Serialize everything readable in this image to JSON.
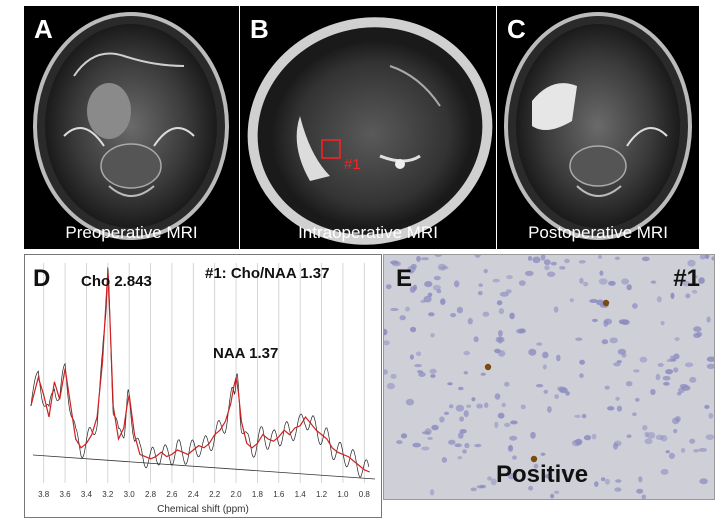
{
  "panels": {
    "a": {
      "letter": "A",
      "caption": "Preoperative MRI"
    },
    "b": {
      "letter": "B",
      "caption": "Intraoperative MRI",
      "roi_label": "#1",
      "roi_color": "#ff2020"
    },
    "c": {
      "letter": "C",
      "caption": "Postoperative MRI"
    },
    "d": {
      "letter": "D",
      "annotation_left": "Cho 2.843",
      "annotation_right": "#1: Cho/NAA 1.37",
      "annotation_naa": "NAA 1.37"
    },
    "e": {
      "letter": "E",
      "region_label": "#1",
      "stain_result": "Positive"
    }
  },
  "chart_data": {
    "type": "line",
    "xlabel": "Chemical shift (ppm)",
    "ylabel": "",
    "x_reversed": true,
    "xlim": [
      3.9,
      0.7
    ],
    "ticks": [
      "3.8",
      "3.6",
      "3.4",
      "3.2",
      "3.0",
      "2.8",
      "2.6",
      "2.4",
      "2.2",
      "2.0",
      "1.8",
      "1.6",
      "1.4",
      "1.2",
      "1.0",
      "0.8"
    ],
    "ylim": [
      0,
      1
    ],
    "grid": true,
    "series": [
      {
        "color": "#d02020",
        "x": [
          3.92,
          3.85,
          3.8,
          3.75,
          3.7,
          3.65,
          3.6,
          3.55,
          3.5,
          3.45,
          3.4,
          3.35,
          3.3,
          3.25,
          3.22,
          3.2,
          3.18,
          3.15,
          3.1,
          3.05,
          3.02,
          3.0,
          2.95,
          2.9,
          2.85,
          2.8,
          2.75,
          2.7,
          2.65,
          2.6,
          2.55,
          2.5,
          2.45,
          2.4,
          2.35,
          2.3,
          2.25,
          2.2,
          2.15,
          2.1,
          2.05,
          2.02,
          2.0,
          1.98,
          1.95,
          1.9,
          1.85,
          1.8,
          1.75,
          1.7,
          1.65,
          1.6,
          1.55,
          1.5,
          1.45,
          1.4,
          1.35,
          1.3,
          1.25,
          1.2,
          1.15,
          1.1,
          1.05,
          1.0,
          0.95,
          0.9,
          0.85,
          0.8,
          0.75
        ],
        "y": [
          0.35,
          0.48,
          0.4,
          0.3,
          0.46,
          0.38,
          0.52,
          0.36,
          0.2,
          0.16,
          0.18,
          0.22,
          0.3,
          0.55,
          0.8,
          0.96,
          0.75,
          0.35,
          0.2,
          0.25,
          0.35,
          0.4,
          0.22,
          0.13,
          0.12,
          0.11,
          0.12,
          0.14,
          0.12,
          0.13,
          0.15,
          0.14,
          0.13,
          0.15,
          0.17,
          0.16,
          0.18,
          0.22,
          0.24,
          0.28,
          0.36,
          0.44,
          0.48,
          0.42,
          0.28,
          0.18,
          0.16,
          0.18,
          0.22,
          0.2,
          0.19,
          0.21,
          0.24,
          0.22,
          0.25,
          0.26,
          0.3,
          0.27,
          0.24,
          0.22,
          0.2,
          0.16,
          0.14,
          0.13,
          0.12,
          0.1,
          0.08,
          0.06,
          0.05
        ]
      }
    ]
  },
  "colors": {
    "mri_bg": "#000000",
    "spectrum_raw": "#222222",
    "spectrum_fit": "#d02020",
    "histo_bg": "#cfcfd8",
    "nuclei": "#8c8cc0",
    "positive_cell": "#7a4a10"
  }
}
